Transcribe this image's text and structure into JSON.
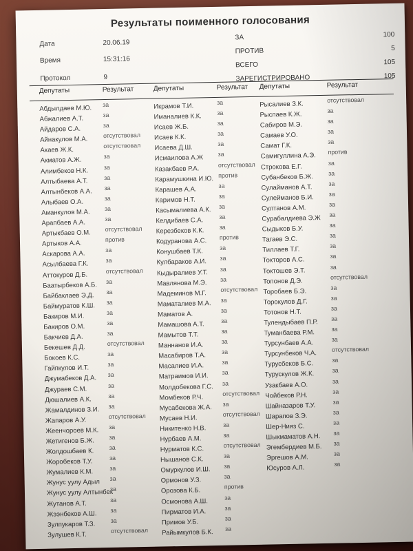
{
  "title": "Результаты поименного голосования",
  "meta": {
    "rows": [
      {
        "label": "Дата",
        "value": "20.06.19"
      },
      {
        "label": "Время",
        "value": "15:31:16"
      },
      {
        "label": "Протокол",
        "value": "9"
      }
    ]
  },
  "totals": {
    "rows": [
      {
        "label": "ЗА",
        "value": "100"
      },
      {
        "label": "ПРОТИВ",
        "value": "5"
      },
      {
        "label": "ВСЕГО",
        "value": "105"
      },
      {
        "label": "ЗАРЕГИСТРИРОВАНО",
        "value": "105"
      }
    ]
  },
  "table": {
    "header_deputies": "Депутаты",
    "header_result": "Результат",
    "columns": [
      {
        "rows": [
          {
            "name": "Абдылдаев М.Ю.",
            "result": "за"
          },
          {
            "name": "Абжалиев А.Т.",
            "result": "за"
          },
          {
            "name": "Айдаров С.А.",
            "result": "за"
          },
          {
            "name": "Айнакулов М.А.",
            "result": "отсутствовал"
          },
          {
            "name": "Акаев Ж.К.",
            "result": "отсутствовал"
          },
          {
            "name": "Акматов А.Ж.",
            "result": "за"
          },
          {
            "name": "Алимбеков Н.К.",
            "result": "за"
          },
          {
            "name": "Алтыбаева А.Т.",
            "result": "за"
          },
          {
            "name": "Алтынбеков А.А.",
            "result": "за"
          },
          {
            "name": "Алыбаев О.А.",
            "result": "за"
          },
          {
            "name": "Аманкулов М.А.",
            "result": "за"
          },
          {
            "name": "Арапбаев А.А.",
            "result": "за"
          },
          {
            "name": "Артыкбаев О.М.",
            "result": "отсутствовал"
          },
          {
            "name": "Артыков А.А.",
            "result": "против"
          },
          {
            "name": "Аскарова А.А.",
            "result": "за"
          },
          {
            "name": "Асылбаева Г.К.",
            "result": "за"
          },
          {
            "name": "Аттокуров Д.Б.",
            "result": "отсутствовал"
          },
          {
            "name": "Баатырбеков А.Б.",
            "result": "за"
          },
          {
            "name": "Байбаклаев Э.Д.",
            "result": "за"
          },
          {
            "name": "Баймуратов К.Ш.",
            "result": "за"
          },
          {
            "name": "Бакиров М.И.",
            "result": "за"
          },
          {
            "name": "Бакиров О.М.",
            "result": "за"
          },
          {
            "name": "Бакчиев Д.А.",
            "result": "за"
          },
          {
            "name": "Бекешев Д.Д.",
            "result": "отсутствовал"
          },
          {
            "name": "Бокоев К.С.",
            "result": "за"
          },
          {
            "name": "Гайпкулов И.Т.",
            "result": "за"
          },
          {
            "name": "Джумабеков Д.А.",
            "result": "за"
          },
          {
            "name": "Джураев С.М.",
            "result": "за"
          },
          {
            "name": "Дюшалиев А.К.",
            "result": "за"
          },
          {
            "name": "Жамалдинов З.И.",
            "result": "за"
          },
          {
            "name": "Жапаров А.У.",
            "result": "отсутствовал"
          },
          {
            "name": "Жеенчороев М.К.",
            "result": "за"
          },
          {
            "name": "Жетигенов Б.Ж.",
            "result": "за"
          },
          {
            "name": "Жолдошбаев К.",
            "result": "за"
          },
          {
            "name": "Жоробеков Т.У.",
            "result": "за"
          },
          {
            "name": "Жумалиев К.М.",
            "result": "за"
          },
          {
            "name": "Жунус уулу Адыл",
            "result": "за"
          },
          {
            "name": "Жунус уулу Алтынбек",
            "result": "за"
          },
          {
            "name": "Жутанов А.Т.",
            "result": "за"
          },
          {
            "name": "Жээнбеков А.Ш.",
            "result": "за"
          },
          {
            "name": "Зулпукаров Т.З.",
            "result": "за"
          },
          {
            "name": "Зулушев К.Т.",
            "result": "отсутствовал"
          }
        ]
      },
      {
        "rows": [
          {
            "name": "Икрамов Т.И.",
            "result": "за"
          },
          {
            "name": "Иманалиев К.К.",
            "result": "за"
          },
          {
            "name": "Исаев Ж.Б.",
            "result": "за"
          },
          {
            "name": "Исаев К.К.",
            "result": "за"
          },
          {
            "name": "Исаева Д.Ш.",
            "result": "за"
          },
          {
            "name": "Исмаилова А.Ж",
            "result": "за"
          },
          {
            "name": "Казакбаев Р.А.",
            "result": "отсутствовал"
          },
          {
            "name": "Карамушкина И.Ю.",
            "result": "против"
          },
          {
            "name": "Карашев А.А.",
            "result": "за"
          },
          {
            "name": "Каримов Н.Т.",
            "result": "за"
          },
          {
            "name": "Касымалиева А.К.",
            "result": "за"
          },
          {
            "name": "Келдибаев С.А.",
            "result": "за"
          },
          {
            "name": "Керезбеков К.К.",
            "result": "за"
          },
          {
            "name": "Кодуранова А.С.",
            "result": "против"
          },
          {
            "name": "Конушбаев Т.К.",
            "result": "за"
          },
          {
            "name": "Кулбараков А.И.",
            "result": "за"
          },
          {
            "name": "Кыдыралиев У.Т.",
            "result": "за"
          },
          {
            "name": "Мавлянова М.Э.",
            "result": "за"
          },
          {
            "name": "Мадеминов М.Г.",
            "result": "отсутствовал"
          },
          {
            "name": "Маматалиев М.А.",
            "result": "за"
          },
          {
            "name": "Маматов А.",
            "result": "за"
          },
          {
            "name": "Мамашова А.Т.",
            "result": "за"
          },
          {
            "name": "Мамытов Т.Т.",
            "result": "за"
          },
          {
            "name": "Маннанов И.А.",
            "result": "за"
          },
          {
            "name": "Масабиров Т.А.",
            "result": "за"
          },
          {
            "name": "Масалиев И.А.",
            "result": "за"
          },
          {
            "name": "Матраимов И.И.",
            "result": "за"
          },
          {
            "name": "Молдобекова Г.С.",
            "result": "за"
          },
          {
            "name": "Момбеков Р.Ч.",
            "result": "отсутствовал"
          },
          {
            "name": "Мусабекова Ж.А.",
            "result": "за"
          },
          {
            "name": "Мусаев Н.И.",
            "result": "отсутствовал"
          },
          {
            "name": "Никитенко Н.В.",
            "result": "за"
          },
          {
            "name": "Нурбаев А.М.",
            "result": "за"
          },
          {
            "name": "Нурматов К.С.",
            "result": "отсутствовал"
          },
          {
            "name": "Нышанов С.К.",
            "result": "за"
          },
          {
            "name": "Омуркулов И.Ш.",
            "result": "за"
          },
          {
            "name": "Ормонов У.З.",
            "result": "за"
          },
          {
            "name": "Орозова К.Б.",
            "result": "против"
          },
          {
            "name": "Осмонова А.Ш.",
            "result": "за"
          },
          {
            "name": "Пирматов И.А.",
            "result": "за"
          },
          {
            "name": "Примов У.Б.",
            "result": "за"
          },
          {
            "name": "Райымкулов Б.К.",
            "result": "за"
          }
        ]
      },
      {
        "rows": [
          {
            "name": "Рысалиев З.К.",
            "result": "отсутствовал"
          },
          {
            "name": "Рыспаев К.Ж.",
            "result": "за"
          },
          {
            "name": "Сабиров М.Э.",
            "result": "за"
          },
          {
            "name": "Самаев У.О.",
            "result": "за"
          },
          {
            "name": "Самат Г.К.",
            "result": "за"
          },
          {
            "name": "Самигуллина А.Э.",
            "result": "против"
          },
          {
            "name": "Строкова Е.Г.",
            "result": "за"
          },
          {
            "name": "Субанбеков Б.Ж.",
            "result": "за"
          },
          {
            "name": "Сулайманов А.Т.",
            "result": "за"
          },
          {
            "name": "Сулейманов Б.И.",
            "result": "за"
          },
          {
            "name": "Султанов А.М.",
            "result": "за"
          },
          {
            "name": "Сурабалдиева Э.Ж",
            "result": "за"
          },
          {
            "name": "Сыдыков Б.У.",
            "result": "за"
          },
          {
            "name": "Тагаев Э.С.",
            "result": "за"
          },
          {
            "name": "Тиллаев Т.Г.",
            "result": "за"
          },
          {
            "name": "Токторов А.С.",
            "result": "за"
          },
          {
            "name": "Токтошев Э.Т.",
            "result": "за"
          },
          {
            "name": "Топонов Д.Э.",
            "result": "отсутствовал"
          },
          {
            "name": "Торобаев Б.Э.",
            "result": "за"
          },
          {
            "name": "Торокулов Д.Г.",
            "result": "за"
          },
          {
            "name": "Тотонов Н.Т.",
            "result": "за"
          },
          {
            "name": "Тулендыбаев П.Р.",
            "result": "за"
          },
          {
            "name": "Туманбаева Р.М.",
            "result": "за"
          },
          {
            "name": "Турсунбаев А.А.",
            "result": "за"
          },
          {
            "name": "Турсунбеков Ч.А.",
            "result": "отсутствовал"
          },
          {
            "name": "Турусбеков Б.С.",
            "result": "за"
          },
          {
            "name": "Турускулов Ж.К.",
            "result": "за"
          },
          {
            "name": "Узакбаев А.О.",
            "result": "за"
          },
          {
            "name": "Чойбеков Р.Н.",
            "result": "за"
          },
          {
            "name": "Шайназаров Т.У.",
            "result": "за"
          },
          {
            "name": "Шарапов З.Э.",
            "result": "за"
          },
          {
            "name": "Шер-Нияз С.",
            "result": "за"
          },
          {
            "name": "Шыкмаматов А.Н.",
            "result": "за"
          },
          {
            "name": "Эгембердиев М.Б.",
            "result": "за"
          },
          {
            "name": "Эргешов А.М.",
            "result": "за"
          },
          {
            "name": "Юсуров А.Л.",
            "result": "за"
          }
        ]
      }
    ]
  }
}
